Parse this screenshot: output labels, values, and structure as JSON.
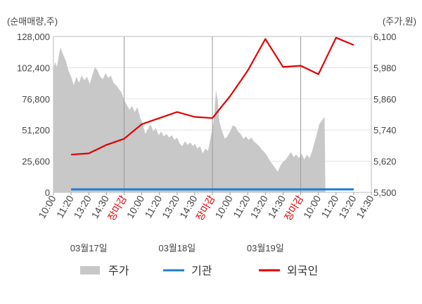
{
  "chart_data": {
    "type": "line",
    "left_axis": {
      "unit_label": "(순매매량,주)",
      "ticks": [
        {
          "value": 0,
          "label": "0"
        },
        {
          "value": 25600,
          "label": "25,600"
        },
        {
          "value": 51200,
          "label": "51,200"
        },
        {
          "value": 76800,
          "label": "76,800"
        },
        {
          "value": 102400,
          "label": "102,400"
        },
        {
          "value": 128000,
          "label": "128,000"
        }
      ],
      "range": [
        0,
        128000
      ]
    },
    "right_axis": {
      "unit_label": "(주가,원)",
      "ticks": [
        {
          "value": 5500,
          "label": "5,500"
        },
        {
          "value": 5620,
          "label": "5,620"
        },
        {
          "value": 5740,
          "label": "5,740"
        },
        {
          "value": 5860,
          "label": "5,860"
        },
        {
          "value": 5980,
          "label": "5,980"
        },
        {
          "value": 6100,
          "label": "6,100"
        }
      ],
      "range": [
        5500,
        6100
      ]
    },
    "x_ticks": [
      {
        "label": "10:00",
        "close": false
      },
      {
        "label": "11:20",
        "close": false
      },
      {
        "label": "13:20",
        "close": false
      },
      {
        "label": "14:30",
        "close": false
      },
      {
        "label": "장마감",
        "close": true
      },
      {
        "label": "10:00",
        "close": false
      },
      {
        "label": "11:20",
        "close": false
      },
      {
        "label": "13:20",
        "close": false
      },
      {
        "label": "14:30",
        "close": false
      },
      {
        "label": "장마감",
        "close": true
      },
      {
        "label": "10:00",
        "close": false
      },
      {
        "label": "11:20",
        "close": false
      },
      {
        "label": "13:20",
        "close": false
      },
      {
        "label": "14:30",
        "close": false
      },
      {
        "label": "장마감",
        "close": true
      },
      {
        "label": "10:00",
        "close": false
      },
      {
        "label": "11:20",
        "close": false
      },
      {
        "label": "13:20",
        "close": false
      },
      {
        "label": "14:30",
        "close": false
      }
    ],
    "dates": [
      "03월17일",
      "03월18일",
      "03월19일"
    ],
    "x_range": [
      0,
      18
    ],
    "series": [
      {
        "name": "주가",
        "kind": "area",
        "axis": "left",
        "color": "#c8c8c8",
        "points": [
          [
            0.0,
            101500
          ],
          [
            0.1,
            107000
          ],
          [
            0.2,
            103000
          ],
          [
            0.3,
            112000
          ],
          [
            0.4,
            119000
          ],
          [
            0.45,
            117000
          ],
          [
            0.55,
            113000
          ],
          [
            0.7,
            108000
          ],
          [
            0.85,
            100000
          ],
          [
            1.0,
            95000
          ],
          [
            1.15,
            88000
          ],
          [
            1.3,
            95000
          ],
          [
            1.45,
            90000
          ],
          [
            1.6,
            96000
          ],
          [
            1.75,
            92000
          ],
          [
            1.9,
            95000
          ],
          [
            2.05,
            89000
          ],
          [
            2.2,
            96000
          ],
          [
            2.35,
            103000
          ],
          [
            2.5,
            100000
          ],
          [
            2.65,
            95000
          ],
          [
            2.8,
            93000
          ],
          [
            2.95,
            98000
          ],
          [
            3.1,
            94000
          ],
          [
            3.25,
            96000
          ],
          [
            3.4,
            90000
          ],
          [
            3.55,
            88000
          ],
          [
            3.7,
            85000
          ],
          [
            3.85,
            82000
          ],
          [
            4.0,
            76000
          ],
          [
            4.15,
            72000
          ],
          [
            4.3,
            68000
          ],
          [
            4.45,
            71000
          ],
          [
            4.6,
            66000
          ],
          [
            4.75,
            70000
          ],
          [
            4.9,
            62000
          ],
          [
            5.05,
            56000
          ],
          [
            5.2,
            48000
          ],
          [
            5.35,
            52000
          ],
          [
            5.5,
            56000
          ],
          [
            5.65,
            50000
          ],
          [
            5.8,
            53000
          ],
          [
            5.95,
            47000
          ],
          [
            6.1,
            50000
          ],
          [
            6.25,
            46000
          ],
          [
            6.4,
            48000
          ],
          [
            6.55,
            45000
          ],
          [
            6.7,
            47000
          ],
          [
            6.85,
            43000
          ],
          [
            7.0,
            45000
          ],
          [
            7.15,
            40000
          ],
          [
            7.3,
            38000
          ],
          [
            7.45,
            42000
          ],
          [
            7.6,
            39000
          ],
          [
            7.75,
            41000
          ],
          [
            7.9,
            38000
          ],
          [
            8.0,
            40000
          ],
          [
            8.15,
            36000
          ],
          [
            8.3,
            38000
          ],
          [
            8.45,
            32000
          ],
          [
            8.6,
            36000
          ],
          [
            8.75,
            34000
          ],
          [
            8.9,
            45000
          ],
          [
            9.0,
            52000
          ],
          [
            9.1,
            62000
          ],
          [
            9.2,
            84000
          ],
          [
            9.3,
            76000
          ],
          [
            9.4,
            58000
          ],
          [
            9.55,
            50000
          ],
          [
            9.7,
            44000
          ],
          [
            9.85,
            46000
          ],
          [
            10.0,
            50000
          ],
          [
            10.15,
            55000
          ],
          [
            10.3,
            54000
          ],
          [
            10.45,
            50000
          ],
          [
            10.6,
            48000
          ],
          [
            10.75,
            44000
          ],
          [
            10.9,
            46000
          ],
          [
            11.05,
            43000
          ],
          [
            11.2,
            45000
          ],
          [
            11.35,
            42000
          ],
          [
            11.5,
            40000
          ],
          [
            11.65,
            38000
          ],
          [
            11.8,
            35000
          ],
          [
            11.95,
            33000
          ],
          [
            12.1,
            30000
          ],
          [
            12.25,
            26000
          ],
          [
            12.4,
            23000
          ],
          [
            12.55,
            20000
          ],
          [
            12.7,
            17000
          ],
          [
            12.85,
            22000
          ],
          [
            13.0,
            25000
          ],
          [
            13.15,
            27000
          ],
          [
            13.3,
            30000
          ],
          [
            13.45,
            33000
          ],
          [
            13.6,
            29000
          ],
          [
            13.75,
            31000
          ],
          [
            13.9,
            28000
          ],
          [
            14.05,
            32000
          ],
          [
            14.2,
            27000
          ],
          [
            14.35,
            31000
          ],
          [
            14.5,
            28000
          ],
          [
            14.65,
            34000
          ],
          [
            14.8,
            42000
          ],
          [
            14.95,
            50000
          ],
          [
            15.05,
            56000
          ],
          [
            15.15,
            58000
          ],
          [
            15.25,
            60000
          ],
          [
            15.35,
            62000
          ],
          [
            15.4,
            0
          ]
        ]
      },
      {
        "name": "기관",
        "kind": "line",
        "axis": "left",
        "color": "#1e7fd6",
        "points": [
          [
            1.0,
            2500
          ],
          [
            17.0,
            2500
          ]
        ]
      },
      {
        "name": "외국인",
        "kind": "line",
        "axis": "left",
        "color": "#e00000",
        "points": [
          [
            1.0,
            31000
          ],
          [
            2.0,
            32000
          ],
          [
            3.0,
            39000
          ],
          [
            4.0,
            44000
          ],
          [
            5.0,
            56000
          ],
          [
            6.0,
            61000
          ],
          [
            7.0,
            66000
          ],
          [
            8.0,
            62000
          ],
          [
            9.0,
            61000
          ],
          [
            10.0,
            79000
          ],
          [
            11.0,
            100000
          ],
          [
            12.0,
            126000
          ],
          [
            13.0,
            103000
          ],
          [
            14.0,
            104000
          ],
          [
            15.0,
            97000
          ],
          [
            16.0,
            127000
          ],
          [
            17.0,
            121000
          ]
        ]
      }
    ]
  }
}
